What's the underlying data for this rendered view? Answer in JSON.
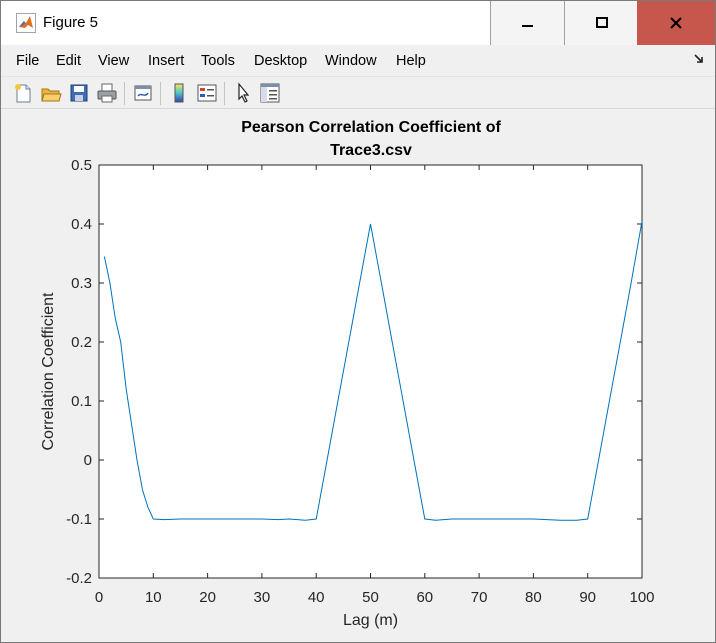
{
  "window": {
    "title": "Figure 5",
    "controls": [
      "minimize",
      "maximize",
      "close"
    ]
  },
  "menu": {
    "items": [
      "File",
      "Edit",
      "View",
      "Insert",
      "Tools",
      "Desktop",
      "Window",
      "Help"
    ]
  },
  "toolbar": {
    "tools": [
      "new-figure-icon",
      "open-file-icon",
      "save-icon",
      "print-icon",
      "link-plot-icon",
      "colorbar-icon",
      "legend-icon",
      "pointer-icon",
      "property-editor-icon"
    ]
  },
  "chart_data": {
    "type": "line",
    "title_line1": "Pearson Correlation Coefficient of",
    "title_line2": "Trace3.csv",
    "xlabel": "Lag (m)",
    "ylabel": "Correlation Coefficient",
    "xlim": [
      0,
      100
    ],
    "ylim": [
      -0.2,
      0.5
    ],
    "xticks": [
      0,
      10,
      20,
      30,
      40,
      50,
      60,
      70,
      80,
      90,
      100
    ],
    "yticks": [
      -0.2,
      -0.1,
      0,
      0.1,
      0.2,
      0.3,
      0.4,
      0.5
    ],
    "line_color": "#0072bd",
    "series": [
      {
        "x": [
          1,
          2,
          3,
          4,
          5,
          6,
          7,
          8,
          9,
          10,
          12,
          15,
          20,
          25,
          30,
          33,
          35,
          38,
          40,
          42,
          44,
          46,
          48,
          50,
          52,
          54,
          56,
          58,
          60,
          62,
          65,
          70,
          75,
          80,
          85,
          88,
          90,
          92,
          94,
          96,
          98,
          100
        ],
        "y": [
          0.345,
          0.3,
          0.24,
          0.2,
          0.12,
          0.06,
          0.0,
          -0.05,
          -0.08,
          -0.1,
          -0.101,
          -0.1,
          -0.1,
          -0.1,
          -0.1,
          -0.101,
          -0.1,
          -0.102,
          -0.1,
          0.0,
          0.1,
          0.2,
          0.3,
          0.4,
          0.3,
          0.2,
          0.1,
          0.0,
          -0.1,
          -0.102,
          -0.1,
          -0.1,
          -0.1,
          -0.1,
          -0.102,
          -0.102,
          -0.1,
          0.0,
          0.1,
          0.2,
          0.3,
          0.405
        ]
      }
    ]
  }
}
